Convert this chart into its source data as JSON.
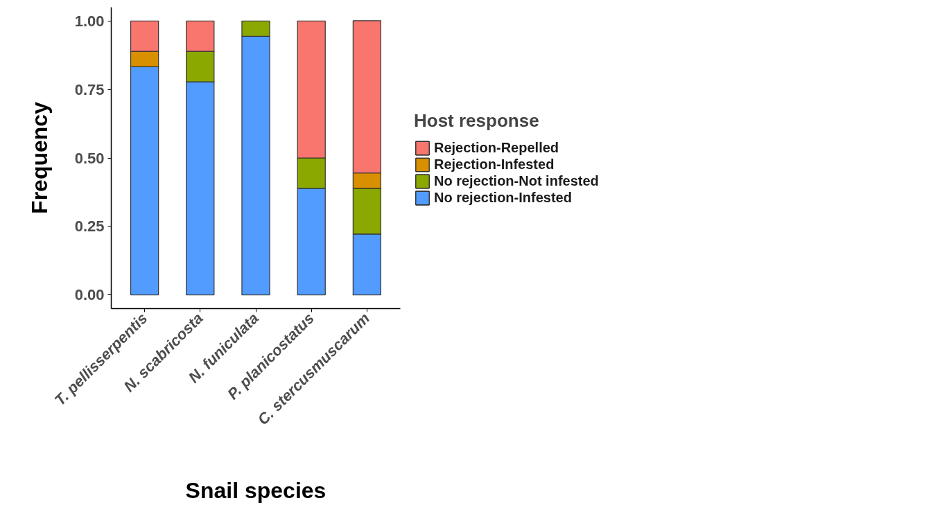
{
  "chart_data": {
    "type": "bar",
    "stacked": true,
    "xlabel": "Snail species",
    "ylabel": "Frequency",
    "legend_title": "Host response",
    "legend": "right",
    "categories": [
      "T. pellisserpentis",
      "N. scabricosta",
      "N. funiculata",
      "P. planicostatus",
      "C. stercusmuscarum"
    ],
    "ylim": [
      -0.05,
      1.05
    ],
    "yticks": [
      {
        "value": 0,
        "label": "0.00"
      },
      {
        "value": 0.25,
        "label": "0.25"
      },
      {
        "value": 0.5,
        "label": "0.50"
      },
      {
        "value": 0.75,
        "label": "0.75"
      },
      {
        "value": 1,
        "label": "1.00"
      }
    ],
    "grid": false,
    "series": [
      {
        "name": "No rejection-Infested",
        "color": "#529bff",
        "values": [
          0.833,
          0.778,
          0.944,
          0.389,
          0.222
        ]
      },
      {
        "name": "No rejection-Not infested",
        "color": "#8ba800",
        "values": [
          null,
          0.111,
          0.056,
          0.111,
          0.167
        ]
      },
      {
        "name": "Rejection-Infested",
        "color": "#d89000",
        "values": [
          0.056,
          null,
          null,
          null,
          0.056
        ]
      },
      {
        "name": "Rejection-Repelled",
        "color": "#f8766d",
        "values": [
          0.111,
          0.111,
          null,
          0.5,
          0.556
        ]
      }
    ]
  }
}
